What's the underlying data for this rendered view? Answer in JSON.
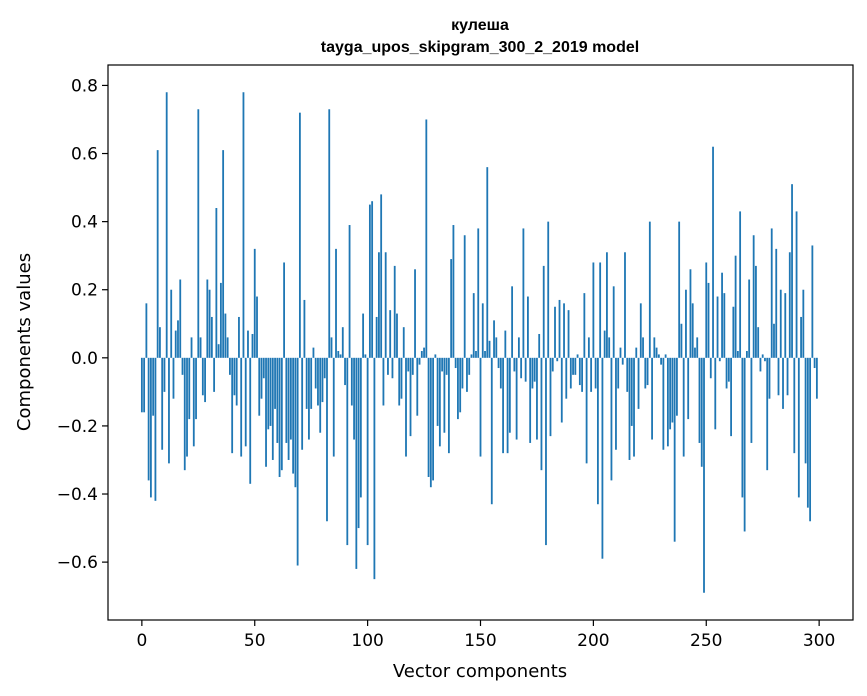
{
  "chart_data": {
    "type": "bar",
    "title": "кулеша",
    "subtitle": "tayga_upos_skipgram_300_2_2019 model",
    "xlabel": "Vector components",
    "ylabel": "Components values",
    "xlim": [
      -15,
      315
    ],
    "ylim": [
      -0.77,
      0.86
    ],
    "xticks": [
      0,
      50,
      100,
      150,
      200,
      250,
      300
    ],
    "yticks": [
      -0.6,
      -0.4,
      -0.2,
      0.0,
      0.2,
      0.4,
      0.6,
      0.8
    ],
    "ytick_labels": [
      "−0.6",
      "−0.4",
      "−0.2",
      "0.0",
      "0.2",
      "0.4",
      "0.6",
      "0.8"
    ],
    "grid": false,
    "bar_color": "#1f77b4",
    "values": [
      -0.16,
      -0.16,
      0.16,
      -0.36,
      -0.41,
      -0.17,
      -0.42,
      0.61,
      0.09,
      -0.27,
      -0.1,
      0.78,
      -0.31,
      0.2,
      -0.12,
      0.08,
      0.11,
      0.23,
      -0.05,
      -0.33,
      -0.29,
      -0.18,
      0.06,
      -0.26,
      -0.18,
      0.73,
      0.06,
      -0.11,
      -0.13,
      0.23,
      0.2,
      0.12,
      -0.1,
      0.44,
      0.04,
      0.22,
      0.61,
      0.13,
      0.06,
      -0.05,
      -0.28,
      -0.11,
      -0.14,
      0.12,
      -0.29,
      0.78,
      -0.26,
      0.08,
      -0.37,
      0.07,
      0.32,
      0.18,
      -0.17,
      -0.12,
      -0.06,
      -0.32,
      -0.21,
      -0.2,
      -0.3,
      -0.15,
      -0.25,
      -0.35,
      -0.33,
      0.28,
      -0.25,
      -0.3,
      -0.24,
      -0.34,
      -0.38,
      -0.61,
      0.72,
      -0.27,
      0.17,
      -0.15,
      -0.24,
      -0.15,
      0.03,
      -0.09,
      -0.14,
      -0.22,
      -0.13,
      -0.06,
      -0.48,
      0.73,
      0.06,
      -0.29,
      0.32,
      0.02,
      0.01,
      0.09,
      -0.08,
      -0.55,
      0.39,
      -0.14,
      -0.24,
      -0.62,
      -0.5,
      -0.41,
      0.13,
      0.01,
      -0.55,
      0.45,
      0.46,
      -0.65,
      0.12,
      0.31,
      0.48,
      -0.14,
      0.31,
      -0.05,
      0.14,
      -0.06,
      0.27,
      0.13,
      -0.14,
      -0.12,
      0.09,
      -0.29,
      -0.04,
      -0.23,
      -0.05,
      0.26,
      -0.17,
      -0.02,
      0.02,
      0.03,
      0.7,
      -0.35,
      -0.38,
      -0.36,
      0.01,
      -0.2,
      -0.26,
      -0.04,
      -0.22,
      -0.05,
      -0.28,
      0.29,
      0.39,
      -0.03,
      -0.18,
      -0.16,
      -0.09,
      0.36,
      -0.1,
      -0.05,
      0.01,
      0.19,
      0.02,
      0.38,
      -0.29,
      0.16,
      0.02,
      0.56,
      0.05,
      -0.43,
      0.11,
      0.06,
      -0.03,
      -0.09,
      -0.28,
      0.08,
      -0.28,
      -0.22,
      0.21,
      -0.04,
      -0.24,
      0.06,
      -0.06,
      0.38,
      -0.07,
      0.18,
      -0.25,
      -0.09,
      -0.07,
      -0.24,
      0.07,
      -0.33,
      0.27,
      -0.55,
      0.4,
      -0.23,
      -0.04,
      0.15,
      -0.01,
      0.17,
      -0.19,
      0.16,
      -0.12,
      0.14,
      -0.09,
      -0.05,
      -0.05,
      0.01,
      -0.08,
      -0.1,
      0.19,
      -0.31,
      0.06,
      -0.1,
      0.28,
      -0.09,
      -0.43,
      0.28,
      -0.59,
      0.08,
      0.31,
      0.06,
      -0.36,
      0.21,
      -0.27,
      -0.09,
      0.03,
      -0.02,
      0.31,
      -0.1,
      -0.3,
      -0.2,
      -0.29,
      0.03,
      -0.15,
      0.16,
      0.06,
      -0.09,
      -0.08,
      0.4,
      -0.24,
      0.06,
      0.03,
      0.01,
      -0.02,
      -0.27,
      0.01,
      -0.26,
      -0.21,
      -0.19,
      -0.54,
      -0.17,
      0.4,
      0.1,
      -0.29,
      0.2,
      -0.18,
      0.26,
      0.16,
      0.03,
      0.06,
      -0.25,
      -0.32,
      -0.69,
      0.28,
      0.22,
      -0.06,
      0.62,
      -0.21,
      0.18,
      -0.01,
      0.25,
      0.19,
      -0.09,
      -0.07,
      -0.23,
      0.15,
      0.3,
      0.02,
      0.43,
      -0.41,
      -0.51,
      0.02,
      0.23,
      -0.25,
      0.36,
      0.27,
      0.09,
      -0.04,
      0.01,
      -0.01,
      -0.33,
      -0.12,
      0.38,
      0.1,
      0.32,
      -0.11,
      0.2,
      -0.15,
      0.19,
      -0.11,
      0.31,
      0.51,
      -0.28,
      0.43,
      -0.41,
      0.12,
      0.2,
      -0.31,
      -0.44,
      -0.48,
      0.33,
      -0.03,
      -0.12
    ]
  }
}
